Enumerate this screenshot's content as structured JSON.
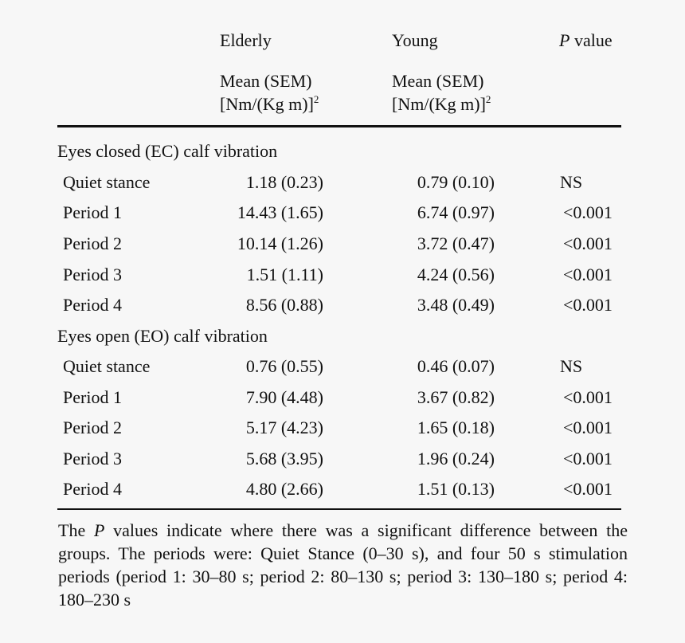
{
  "header": {
    "col_elderly": "Elderly",
    "col_young": "Young",
    "col_p_italic": "P",
    "col_p_rest": " value",
    "elderly_sub1": "Mean (SEM)",
    "elderly_sub2": "[Nm/(Kg m)]",
    "elderly_sup": "2",
    "young_sub1": "Mean (SEM)",
    "young_sub2": "[Nm/(Kg m)]",
    "young_sup": "2"
  },
  "sections": [
    {
      "title": "Eyes closed (EC) calf vibration",
      "rows": [
        {
          "label": "Quiet stance",
          "elderly": "1.18 (0.23)",
          "young": "0.79 (0.10)",
          "p": "NS"
        },
        {
          "label": "Period 1",
          "elderly": "14.43 (1.65)",
          "young": "6.74 (0.97)",
          "p": "<0.001"
        },
        {
          "label": "Period 2",
          "elderly": "10.14 (1.26)",
          "young": "3.72 (0.47)",
          "p": "<0.001"
        },
        {
          "label": "Period 3",
          "elderly": "1.51 (1.11)",
          "young": "4.24 (0.56)",
          "p": "<0.001"
        },
        {
          "label": "Period 4",
          "elderly": "8.56 (0.88)",
          "young": "3.48 (0.49)",
          "p": "<0.001"
        }
      ]
    },
    {
      "title": "Eyes open (EO) calf vibration",
      "rows": [
        {
          "label": "Quiet stance",
          "elderly": "0.76 (0.55)",
          "young": "0.46 (0.07)",
          "p": "NS"
        },
        {
          "label": "Period 1",
          "elderly": "7.90 (4.48)",
          "young": "3.67 (0.82)",
          "p": "<0.001"
        },
        {
          "label": "Period 2",
          "elderly": "5.17 (4.23)",
          "young": "1.65 (0.18)",
          "p": "<0.001"
        },
        {
          "label": "Period 3",
          "elderly": "5.68 (3.95)",
          "young": "1.96 (0.24)",
          "p": "<0.001"
        },
        {
          "label": "Period 4",
          "elderly": "4.80 (2.66)",
          "young": "1.51 (0.13)",
          "p": "<0.001"
        }
      ]
    }
  ],
  "footnote": {
    "part1": "The ",
    "p_italic": "P",
    "part2": " values indicate where there was a significant difference between the groups. The periods were: Quiet Stance (0–30 s), and four 50 s stimulation periods (period 1: 30–80 s; period 2: 80–130 s; period 3: 130–180 s; period 4: 180–230 s"
  }
}
